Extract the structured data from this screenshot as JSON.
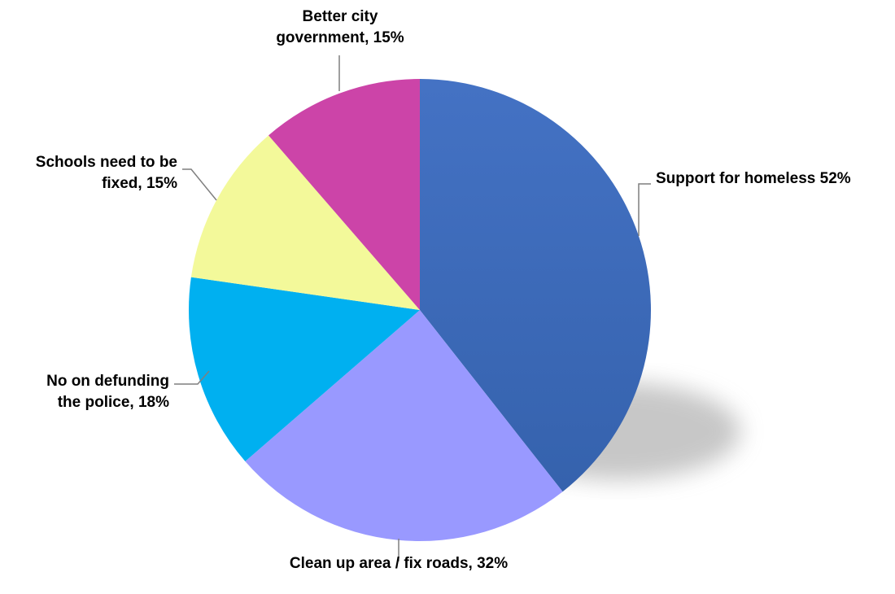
{
  "chart_data": {
    "type": "pie",
    "slices": [
      {
        "label_lines": [
          "Support for homeless 52%"
        ],
        "value": 52,
        "color": "#4472c4",
        "color_dark": "#3562ad"
      },
      {
        "label_lines": [
          "Clean up area / fix roads, 32%"
        ],
        "value": 32,
        "color": "#9999ff"
      },
      {
        "label_lines": [
          "No on defunding",
          "the police, 18%"
        ],
        "value": 18,
        "color": "#00b0f0"
      },
      {
        "label_lines": [
          "Schools need to be",
          "fixed, 15%"
        ],
        "value": 15,
        "color": "#f3f99a"
      },
      {
        "label_lines": [
          "Better city",
          "government, 15%"
        ],
        "value": 15,
        "color": "#cc44a8"
      }
    ],
    "start_angle_deg": 0,
    "direction": "clockwise",
    "legend": "none",
    "data_labels": "outside with leader lines"
  }
}
